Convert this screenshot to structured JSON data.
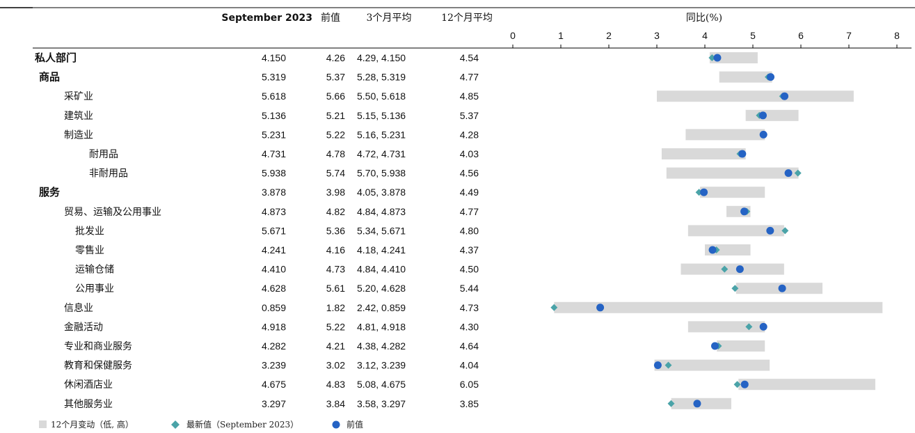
{
  "table": {
    "headers": {
      "current": "September 2023",
      "previous": "前值",
      "three_month": "3个月平均",
      "twelve_month": "12个月平均",
      "yoy": "同比(%)"
    }
  },
  "legend": {
    "range": "12个月变动（低, 高）",
    "latest": "最新值（September 2023）",
    "previous": "前值"
  },
  "colors": {
    "range_bar": "#d9d9d9",
    "latest": "#4aa3a8",
    "previous": "#2563c4",
    "rule": "#000000"
  },
  "chart_data": {
    "type": "range-dot",
    "x_ticks": [
      "0",
      "1",
      "2",
      "3",
      "4",
      "5",
      "6",
      "7",
      "8"
    ],
    "xlim": [
      0,
      8
    ],
    "rows": [
      {
        "label": "私人部门",
        "level": 0,
        "current": "4.150",
        "previous": "4.26",
        "three_month": "4.29, 4.150",
        "twelve_month": "4.54",
        "latest": 4.15,
        "prev": 4.26,
        "low": 4.1,
        "high": 5.1
      },
      {
        "label": "商品",
        "level": 1,
        "current": "5.319",
        "previous": "5.37",
        "three_month": "5.28, 5.319",
        "twelve_month": "4.77",
        "latest": 5.319,
        "prev": 5.37,
        "low": 4.3,
        "high": 5.4
      },
      {
        "label": "采矿业",
        "level": 2,
        "current": "5.618",
        "previous": "5.66",
        "three_month": "5.50, 5.618",
        "twelve_month": "4.85",
        "latest": 5.618,
        "prev": 5.66,
        "low": 3.0,
        "high": 7.1
      },
      {
        "label": "建筑业",
        "level": 2,
        "current": "5.136",
        "previous": "5.21",
        "three_month": "5.15, 5.136",
        "twelve_month": "5.37",
        "latest": 5.136,
        "prev": 5.21,
        "low": 4.85,
        "high": 5.95
      },
      {
        "label": "制造业",
        "level": 2,
        "current": "5.231",
        "previous": "5.22",
        "three_month": "5.16, 5.231",
        "twelve_month": "4.28",
        "latest": 5.231,
        "prev": 5.22,
        "low": 3.6,
        "high": 5.25
      },
      {
        "label": "耐用品",
        "level": 4,
        "current": "4.731",
        "previous": "4.78",
        "three_month": "4.72, 4.731",
        "twelve_month": "4.03",
        "latest": 4.731,
        "prev": 4.78,
        "low": 3.1,
        "high": 4.85
      },
      {
        "label": "非耐用品",
        "level": 4,
        "current": "5.938",
        "previous": "5.74",
        "three_month": "5.70, 5.938",
        "twelve_month": "4.56",
        "latest": 5.938,
        "prev": 5.74,
        "low": 3.2,
        "high": 5.95
      },
      {
        "label": "服务",
        "level": 1,
        "current": "3.878",
        "previous": "3.98",
        "three_month": "4.05, 3.878",
        "twelve_month": "4.49",
        "latest": 3.878,
        "prev": 3.98,
        "low": 3.9,
        "high": 5.25
      },
      {
        "label": "贸易、运输及公用事业",
        "level": 2,
        "current": "4.873",
        "previous": "4.82",
        "three_month": "4.84, 4.873",
        "twelve_month": "4.77",
        "latest": 4.873,
        "prev": 4.82,
        "low": 4.45,
        "high": 4.95
      },
      {
        "label": "批发业",
        "level": 3,
        "current": "5.671",
        "previous": "5.36",
        "three_month": "5.34, 5.671",
        "twelve_month": "4.80",
        "latest": 5.671,
        "prev": 5.36,
        "low": 3.65,
        "high": 5.65
      },
      {
        "label": "零售业",
        "level": 3,
        "current": "4.241",
        "previous": "4.16",
        "three_month": "4.18, 4.241",
        "twelve_month": "4.37",
        "latest": 4.241,
        "prev": 4.16,
        "low": 4.0,
        "high": 4.95
      },
      {
        "label": "运输仓储",
        "level": 3,
        "current": "4.410",
        "previous": "4.73",
        "three_month": "4.84, 4.410",
        "twelve_month": "4.50",
        "latest": 4.41,
        "prev": 4.73,
        "low": 3.5,
        "high": 5.65
      },
      {
        "label": "公用事业",
        "level": 3,
        "current": "4.628",
        "previous": "5.61",
        "three_month": "5.20, 4.628",
        "twelve_month": "5.44",
        "latest": 4.628,
        "prev": 5.61,
        "low": 4.65,
        "high": 6.45
      },
      {
        "label": "信息业",
        "level": 2,
        "current": "0.859",
        "previous": "1.82",
        "three_month": "2.42, 0.859",
        "twelve_month": "4.73",
        "latest": 0.859,
        "prev": 1.82,
        "low": 0.86,
        "high": 7.7
      },
      {
        "label": "金融活动",
        "level": 2,
        "current": "4.918",
        "previous": "5.22",
        "three_month": "4.81, 4.918",
        "twelve_month": "4.30",
        "latest": 4.918,
        "prev": 5.22,
        "low": 3.65,
        "high": 5.25
      },
      {
        "label": "专业和商业服务",
        "level": 2,
        "current": "4.282",
        "previous": "4.21",
        "three_month": "4.38, 4.282",
        "twelve_month": "4.64",
        "latest": 4.282,
        "prev": 4.21,
        "low": 4.25,
        "high": 5.25
      },
      {
        "label": "教育和保健服务",
        "level": 2,
        "current": "3.239",
        "previous": "3.02",
        "three_month": "3.12, 3.239",
        "twelve_month": "4.04",
        "latest": 3.239,
        "prev": 3.02,
        "low": 2.95,
        "high": 5.35
      },
      {
        "label": "休闲酒店业",
        "level": 2,
        "current": "4.675",
        "previous": "4.83",
        "three_month": "5.08, 4.675",
        "twelve_month": "6.05",
        "latest": 4.675,
        "prev": 4.83,
        "low": 4.7,
        "high": 7.55
      },
      {
        "label": "其他服务业",
        "level": 2,
        "current": "3.297",
        "previous": "3.84",
        "three_month": "3.58, 3.297",
        "twelve_month": "3.85",
        "latest": 3.297,
        "prev": 3.84,
        "low": 3.3,
        "high": 4.55
      }
    ]
  }
}
